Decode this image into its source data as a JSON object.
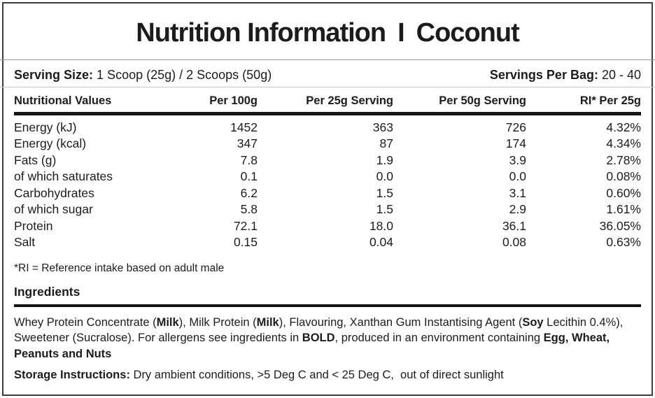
{
  "title": {
    "left": "Nutrition Information",
    "separator": "I",
    "right": "Coconut"
  },
  "serving": {
    "size_label": "Serving Size:",
    "size_value": " 1 Scoop (25g) / 2 Scoops (50g)",
    "per_bag_label": "Servings Per Bag:",
    "per_bag_value": " 20 - 40"
  },
  "table": {
    "headers": [
      "Nutritional Values",
      "Per 100g",
      "Per 25g Serving",
      "Per 50g Serving",
      "RI* Per 25g"
    ],
    "rows": [
      {
        "name": "Energy (kJ)",
        "per_100g": "1452",
        "per_25g": "363",
        "per_50g": "726",
        "ri": "4.32%"
      },
      {
        "name": "Energy (kcal)",
        "per_100g": "347",
        "per_25g": "87",
        "per_50g": "174",
        "ri": "4.34%"
      },
      {
        "name": "Fats (g)",
        "per_100g": "7.8",
        "per_25g": "1.9",
        "per_50g": "3.9",
        "ri": "2.78%"
      },
      {
        "name": "of which saturates",
        "per_100g": "0.1",
        "per_25g": "0.0",
        "per_50g": "0.0",
        "ri": "0.08%"
      },
      {
        "name": "Carbohydrates",
        "per_100g": "6.2",
        "per_25g": "1.5",
        "per_50g": "3.1",
        "ri": "0.60%"
      },
      {
        "name": "of which sugar",
        "per_100g": "5.8",
        "per_25g": "1.5",
        "per_50g": "2.9",
        "ri": "1.61%"
      },
      {
        "name": "Protein",
        "per_100g": "72.1",
        "per_25g": "18.0",
        "per_50g": "36.1",
        "ri": "36.05%"
      },
      {
        "name": "Salt",
        "per_100g": "0.15",
        "per_25g": "0.04",
        "per_50g": "0.08",
        "ri": "0.63%"
      }
    ]
  },
  "footnote": "*RI = Reference intake based on adult male",
  "ingredients": {
    "heading": "Ingredients",
    "segments": [
      {
        "text": "Whey Protein Concentrate (",
        "bold": false
      },
      {
        "text": "Milk",
        "bold": true
      },
      {
        "text": "), Milk Protein (",
        "bold": false
      },
      {
        "text": "Milk",
        "bold": true
      },
      {
        "text": "), Flavouring, Xanthan Gum Instantising Agent (",
        "bold": false
      },
      {
        "text": "Soy",
        "bold": true
      },
      {
        "text": " Lecithin 0.4%), Sweetener (Sucralose). For allergens see ingredients in ",
        "bold": false
      },
      {
        "text": "BOLD",
        "bold": true
      },
      {
        "text": ", produced in an environment containing ",
        "bold": false
      },
      {
        "text": "Egg, Wheat, Peanuts and Nuts",
        "bold": true
      }
    ]
  },
  "storage": {
    "label": "Storage Instructions:",
    "text": " Dry ambient conditions, >5 Deg C and < 25 Deg C,  out of direct sunlight"
  },
  "colors": {
    "text": "#1c1c1c",
    "border": "#3d3d3d",
    "rule_heavy": "#141414",
    "rule_light": "#9a9a9a"
  }
}
